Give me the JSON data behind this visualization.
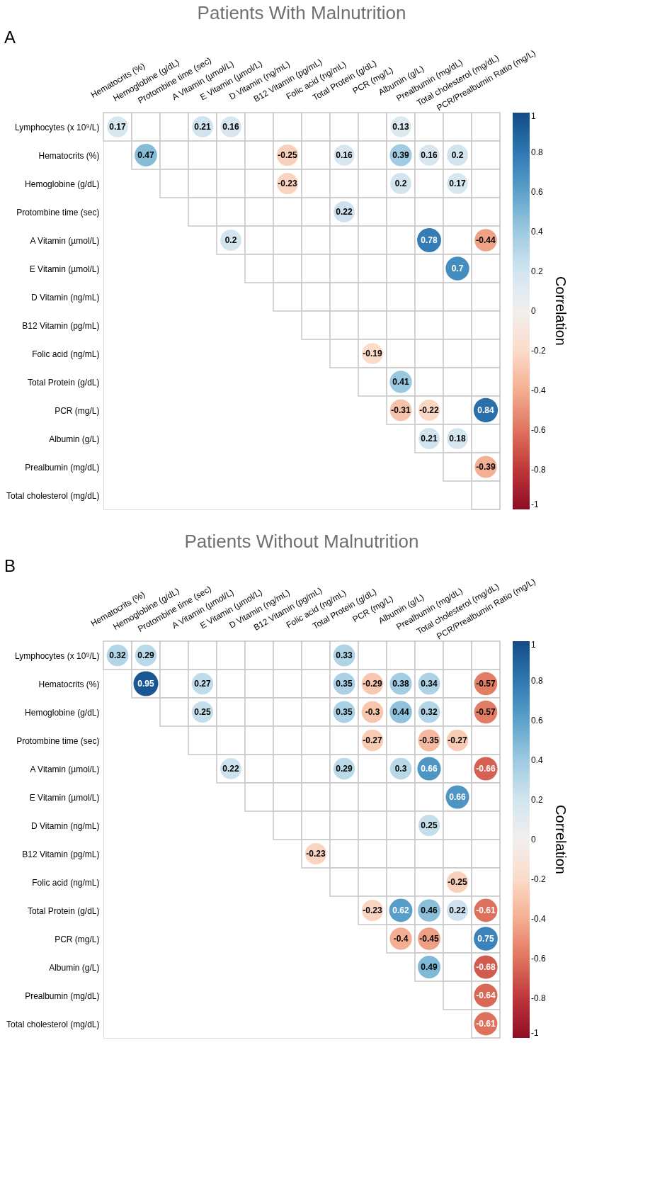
{
  "chart_data": [
    {
      "type": "heatmap",
      "title": "Patients With Malnutrition",
      "annotations": [
        "A"
      ],
      "clabel": "Correlation",
      "clim": [
        -1,
        1
      ],
      "cticks": [
        -1,
        -0.8,
        -0.6,
        -0.4,
        -0.2,
        0,
        0.2,
        0.4,
        0.6,
        0.8,
        1
      ],
      "data_labels": true,
      "categories": [
        "Hematocrits (%)",
        "Hemoglobine (g/dL)",
        "Protombine time (sec)",
        "A Vitamin (µmol/L)",
        "E Vitamin (µmol/L)",
        "D Vitamin (ng/mL)",
        "B12 Vitamin (pg/mL)",
        "Folic acid (ng/mL)",
        "Total Protein (g/dL)",
        "PCR (mg/L)",
        "Albumin (g/L)",
        "Prealbumin (mg/dL)",
        "Total cholesterol (mg/dL)",
        "PCR/Prealbumin Ratio (mg/L)"
      ],
      "y_categories": [
        "Lymphocytes (x 10⁹/L)",
        "Hematocrits (%)",
        "Hemoglobine (g/dL)",
        "Protombine time (sec)",
        "A Vitamin (µmol/L)",
        "E Vitamin (µmol/L)",
        "D Vitamin (ng/mL)",
        "B12 Vitamin (pg/mL)",
        "Folic acid (ng/mL)",
        "Total Protein (g/dL)",
        "PCR (mg/L)",
        "Albumin (g/L)",
        "Prealbumin (mg/dL)",
        "Total cholesterol (mg/dL)"
      ],
      "cells": [
        [
          0.17,
          null,
          null,
          0.21,
          0.16,
          null,
          null,
          null,
          null,
          null,
          0.13,
          null,
          null,
          null
        ],
        [
          null,
          0.47,
          null,
          null,
          null,
          null,
          -0.25,
          null,
          0.16,
          null,
          0.39,
          0.16,
          0.2,
          null
        ],
        [
          null,
          null,
          null,
          null,
          null,
          null,
          -0.23,
          null,
          null,
          null,
          0.2,
          null,
          0.17,
          null
        ],
        [
          null,
          null,
          null,
          null,
          null,
          null,
          null,
          null,
          0.22,
          null,
          null,
          null,
          null,
          null
        ],
        [
          null,
          null,
          null,
          null,
          0.2,
          null,
          null,
          null,
          null,
          null,
          null,
          0.78,
          null,
          -0.44
        ],
        [
          null,
          null,
          null,
          null,
          null,
          null,
          null,
          null,
          null,
          null,
          null,
          null,
          0.7,
          null
        ],
        [
          null,
          null,
          null,
          null,
          null,
          null,
          null,
          null,
          null,
          null,
          null,
          null,
          null,
          null
        ],
        [
          null,
          null,
          null,
          null,
          null,
          null,
          null,
          null,
          null,
          null,
          null,
          null,
          null,
          null
        ],
        [
          null,
          null,
          null,
          null,
          null,
          null,
          null,
          null,
          null,
          -0.19,
          null,
          null,
          null,
          null
        ],
        [
          null,
          null,
          null,
          null,
          null,
          null,
          null,
          null,
          null,
          null,
          0.41,
          null,
          null,
          null
        ],
        [
          null,
          null,
          null,
          null,
          null,
          null,
          null,
          null,
          null,
          null,
          -0.31,
          -0.22,
          null,
          0.84
        ],
        [
          null,
          null,
          null,
          null,
          null,
          null,
          null,
          null,
          null,
          null,
          null,
          0.21,
          0.18,
          null
        ],
        [
          null,
          null,
          null,
          null,
          null,
          null,
          null,
          null,
          null,
          null,
          null,
          null,
          null,
          -0.39
        ],
        [
          null,
          null,
          null,
          null,
          null,
          null,
          null,
          null,
          null,
          null,
          null,
          null,
          null,
          null
        ]
      ]
    },
    {
      "type": "heatmap",
      "title": "Patients Without Malnutrition",
      "annotations": [
        "B"
      ],
      "clabel": "Correlation",
      "clim": [
        -1,
        1
      ],
      "cticks": [
        -1,
        -0.8,
        -0.6,
        -0.4,
        -0.2,
        0,
        0.2,
        0.4,
        0.6,
        0.8,
        1
      ],
      "data_labels": true,
      "categories": [
        "Hematocrits (%)",
        "Hemoglobine (g/dL)",
        "Protombine time (sec)",
        "A Vitamin (µmol/L)",
        "E Vitamin (µmol/L)",
        "D Vitamin (ng/mL)",
        "B12 Vitamin (pg/mL)",
        "Folic acid (ng/mL)",
        "Total Protein (g/dL)",
        "PCR (mg/L)",
        "Albumin (g/L)",
        "Prealbumin (mg/dL)",
        "Total cholesterol (mg/dL)",
        "PCR/Prealbumin Ratio (mg/L)"
      ],
      "y_categories": [
        "Lymphocytes (x 10⁹/L)",
        "Hematocrits (%)",
        "Hemoglobine (g/dL)",
        "Protombine time (sec)",
        "A Vitamin (µmol/L)",
        "E Vitamin (µmol/L)",
        "D Vitamin (ng/mL)",
        "B12 Vitamin (pg/mL)",
        "Folic acid (ng/mL)",
        "Total Protein (g/dL)",
        "PCR (mg/L)",
        "Albumin (g/L)",
        "Prealbumin (mg/dL)",
        "Total cholesterol (mg/dL)"
      ],
      "cells": [
        [
          0.32,
          0.29,
          null,
          null,
          null,
          null,
          null,
          null,
          0.33,
          null,
          null,
          null,
          null,
          null
        ],
        [
          null,
          0.95,
          null,
          0.27,
          null,
          null,
          null,
          null,
          0.35,
          -0.29,
          0.38,
          0.34,
          null,
          -0.57
        ],
        [
          null,
          null,
          null,
          0.25,
          null,
          null,
          null,
          null,
          0.35,
          -0.3,
          0.44,
          0.32,
          null,
          -0.57
        ],
        [
          null,
          null,
          null,
          null,
          null,
          null,
          null,
          null,
          null,
          -0.27,
          null,
          -0.35,
          -0.27,
          null
        ],
        [
          null,
          null,
          null,
          null,
          0.22,
          null,
          null,
          null,
          0.29,
          null,
          0.3,
          0.66,
          null,
          -0.66
        ],
        [
          null,
          null,
          null,
          null,
          null,
          null,
          null,
          null,
          null,
          null,
          null,
          null,
          0.66,
          null
        ],
        [
          null,
          null,
          null,
          null,
          null,
          null,
          null,
          null,
          null,
          null,
          null,
          0.25,
          null,
          null
        ],
        [
          null,
          null,
          null,
          null,
          null,
          null,
          null,
          -0.23,
          null,
          null,
          null,
          null,
          null,
          null
        ],
        [
          null,
          null,
          null,
          null,
          null,
          null,
          null,
          null,
          null,
          null,
          null,
          null,
          -0.25,
          null
        ],
        [
          null,
          null,
          null,
          null,
          null,
          null,
          null,
          null,
          null,
          -0.23,
          0.62,
          0.46,
          0.22,
          -0.61
        ],
        [
          null,
          null,
          null,
          null,
          null,
          null,
          null,
          null,
          null,
          null,
          -0.4,
          -0.45,
          null,
          0.75
        ],
        [
          null,
          null,
          null,
          null,
          null,
          null,
          null,
          null,
          null,
          null,
          null,
          0.49,
          null,
          -0.68
        ],
        [
          null,
          null,
          null,
          null,
          null,
          null,
          null,
          null,
          null,
          null,
          null,
          null,
          null,
          -0.64
        ],
        [
          null,
          null,
          null,
          null,
          null,
          null,
          null,
          null,
          null,
          null,
          null,
          null,
          null,
          -0.61
        ]
      ]
    }
  ]
}
